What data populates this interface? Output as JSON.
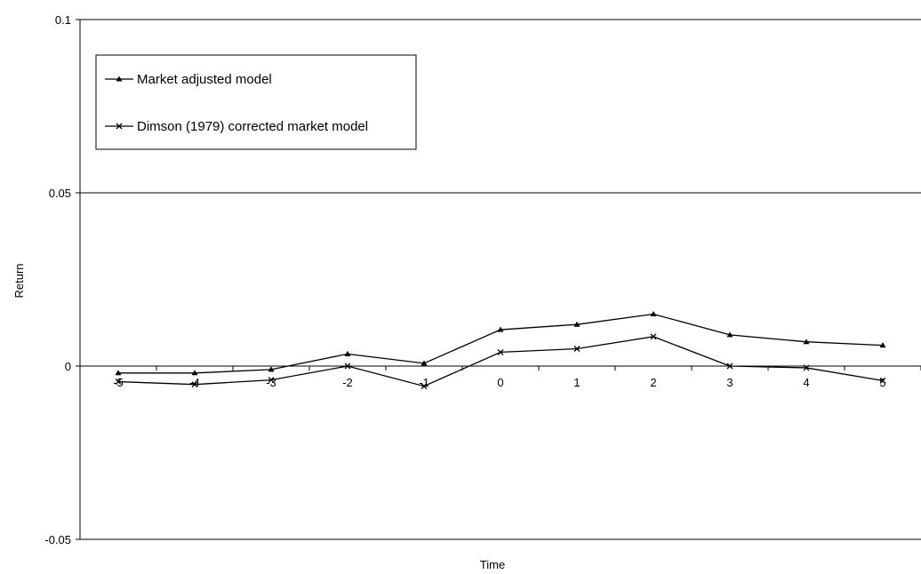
{
  "chart_data": {
    "type": "line",
    "xlabel": "Time",
    "ylabel": "Return",
    "ylim": [
      -0.05,
      0.1
    ],
    "y_ticks": [
      "-0.05",
      "0",
      "0.05",
      "0.1"
    ],
    "y_tick_values": [
      -0.05,
      0,
      0.05,
      0.1
    ],
    "categories": [
      "-5",
      "-4",
      "-3",
      "-2",
      "-1",
      "0",
      "1",
      "2",
      "3",
      "4",
      "5"
    ],
    "grid": "horizontal major gridlines",
    "legend_position": "top-left",
    "series": [
      {
        "name": "Market adjusted model",
        "marker": "triangle",
        "color": "#000000",
        "values": [
          -0.002,
          -0.002,
          -0.001,
          0.0035,
          0.0008,
          0.0105,
          0.012,
          0.015,
          0.009,
          0.007,
          0.006
        ]
      },
      {
        "name": "Dimson (1979) corrected market model",
        "marker": "x",
        "color": "#000000",
        "values": [
          -0.0045,
          -0.0053,
          -0.004,
          0.0,
          -0.0058,
          0.004,
          0.005,
          0.0085,
          0.0,
          -0.0005,
          -0.0042
        ]
      }
    ]
  }
}
